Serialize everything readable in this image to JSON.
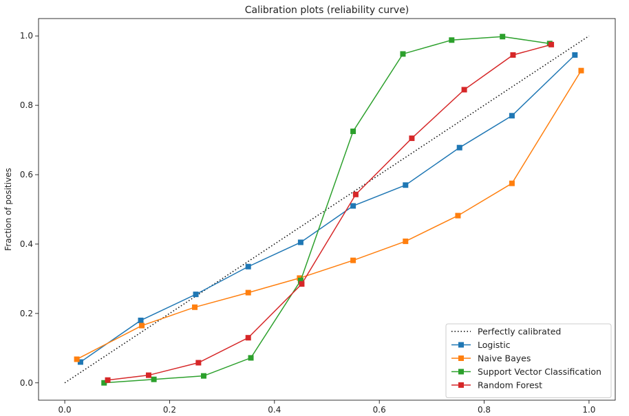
{
  "chart_data": {
    "type": "line",
    "title": "Calibration plots  (reliability curve)",
    "xlabel": "",
    "ylabel": "Fraction of positives",
    "xlim": [
      -0.05,
      1.05
    ],
    "ylim": [
      -0.05,
      1.05
    ],
    "x_ticks": [
      0.0,
      0.2,
      0.4,
      0.6,
      0.8,
      1.0
    ],
    "y_ticks": [
      0.0,
      0.2,
      0.4,
      0.6,
      0.8,
      1.0
    ],
    "x_tick_labels": [
      "0.0",
      "0.2",
      "0.4",
      "0.6",
      "0.8",
      "1.0"
    ],
    "y_tick_labels": [
      "0.0",
      "0.2",
      "0.4",
      "0.6",
      "0.8",
      "1.0"
    ],
    "grid": false,
    "legend_placement": "lower-right",
    "reference": {
      "name": "Perfectly calibrated",
      "x": [
        0.0,
        1.0
      ],
      "y": [
        0.0,
        1.0
      ],
      "color": "#000000",
      "style": "dotted"
    },
    "series": [
      {
        "name": "Logistic",
        "color": "#1f77b4",
        "marker": "square",
        "x": [
          0.03,
          0.145,
          0.25,
          0.35,
          0.45,
          0.55,
          0.65,
          0.753,
          0.853,
          0.973
        ],
        "y": [
          0.06,
          0.18,
          0.255,
          0.335,
          0.405,
          0.51,
          0.57,
          0.678,
          0.77,
          0.945
        ]
      },
      {
        "name": "Naive Bayes",
        "color": "#ff7f0e",
        "marker": "square",
        "x": [
          0.023,
          0.147,
          0.248,
          0.35,
          0.448,
          0.55,
          0.65,
          0.75,
          0.853,
          0.985
        ],
        "y": [
          0.068,
          0.165,
          0.218,
          0.26,
          0.302,
          0.353,
          0.408,
          0.482,
          0.575,
          0.9
        ]
      },
      {
        "name": "Support Vector Classification",
        "color": "#2ca02c",
        "marker": "square",
        "x": [
          0.075,
          0.17,
          0.265,
          0.355,
          0.45,
          0.55,
          0.645,
          0.738,
          0.835,
          0.925
        ],
        "y": [
          0.0,
          0.01,
          0.02,
          0.072,
          0.295,
          0.725,
          0.948,
          0.988,
          0.998,
          0.978
        ]
      },
      {
        "name": "Random Forest",
        "color": "#d62728",
        "marker": "square",
        "x": [
          0.082,
          0.16,
          0.255,
          0.35,
          0.452,
          0.555,
          0.662,
          0.762,
          0.855,
          0.928
        ],
        "y": [
          0.008,
          0.022,
          0.058,
          0.13,
          0.285,
          0.543,
          0.705,
          0.845,
          0.945,
          0.975
        ]
      }
    ]
  }
}
